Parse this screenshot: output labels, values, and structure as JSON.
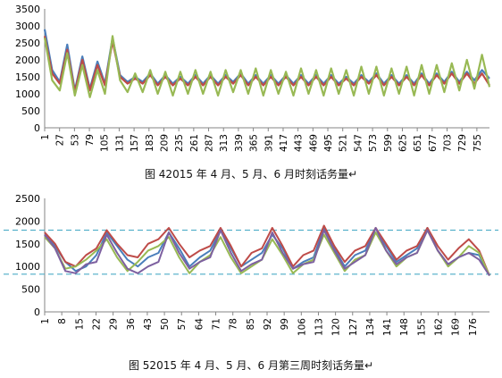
{
  "chart_data": [
    {
      "type": "line",
      "title": "",
      "xlabel": "",
      "ylabel": "",
      "ylim": [
        0,
        3500
      ],
      "y_ticks": [
        "0",
        "500",
        "1000",
        "1500",
        "2000",
        "2500",
        "3000",
        "3500"
      ],
      "x_ticks": [
        "1",
        "27",
        "53",
        "79",
        "105",
        "131",
        "157",
        "183",
        "209",
        "235",
        "261",
        "287",
        "313",
        "339",
        "365",
        "391",
        "417",
        "443",
        "469",
        "495",
        "521",
        "547",
        "573",
        "599",
        "625",
        "651",
        "677",
        "703",
        "729",
        "755"
      ],
      "x_range": [
        1,
        777
      ],
      "grid": false,
      "legend": "none",
      "series": [
        {
          "color": "#4a7ebb",
          "values": [
            2900,
            1700,
            1350,
            2450,
            1100,
            2100,
            1150,
            1950,
            1300,
            2650,
            1550,
            1350,
            1500,
            1350,
            1600,
            1300,
            1550,
            1300,
            1500,
            1300,
            1550,
            1300,
            1550,
            1300,
            1550,
            1350,
            1600,
            1300,
            1550,
            1300,
            1550,
            1300,
            1550,
            1300,
            1550,
            1300,
            1550,
            1300,
            1550,
            1300,
            1500,
            1300,
            1550,
            1350,
            1600,
            1300,
            1550,
            1300,
            1550,
            1300,
            1600,
            1300,
            1600,
            1350,
            1650,
            1350,
            1650,
            1400,
            1700,
            1450
          ]
        },
        {
          "color": "#be4b48",
          "values": [
            2700,
            1600,
            1300,
            2300,
            1050,
            2000,
            1100,
            1850,
            1250,
            2550,
            1500,
            1300,
            1450,
            1300,
            1550,
            1250,
            1500,
            1250,
            1450,
            1250,
            1500,
            1250,
            1500,
            1250,
            1500,
            1300,
            1550,
            1250,
            1500,
            1250,
            1500,
            1250,
            1500,
            1250,
            1500,
            1250,
            1500,
            1250,
            1500,
            1250,
            1450,
            1250,
            1500,
            1300,
            1550,
            1250,
            1500,
            1250,
            1500,
            1250,
            1550,
            1250,
            1550,
            1300,
            1600,
            1300,
            1600,
            1300,
            1600,
            1250
          ]
        },
        {
          "color": "#98b954",
          "values": [
            2650,
            1400,
            1100,
            2200,
            950,
            1850,
            900,
            1700,
            1000,
            2700,
            1400,
            1050,
            1600,
            1050,
            1700,
            1000,
            1650,
            950,
            1650,
            1000,
            1700,
            1000,
            1650,
            950,
            1700,
            1050,
            1700,
            1000,
            1750,
            950,
            1700,
            1000,
            1650,
            950,
            1750,
            1000,
            1700,
            950,
            1750,
            1000,
            1700,
            950,
            1800,
            1000,
            1800,
            950,
            1750,
            1000,
            1800,
            950,
            1850,
            1000,
            1850,
            1050,
            1900,
            1100,
            2000,
            1150,
            2150,
            1200
          ]
        }
      ]
    },
    {
      "type": "line",
      "title": "",
      "xlabel": "",
      "ylabel": "",
      "ylim": [
        0,
        2500
      ],
      "y_ticks": [
        "0",
        "500",
        "1000",
        "1500",
        "2000",
        "2500"
      ],
      "x_ticks": [
        "1",
        "8",
        "15",
        "22",
        "29",
        "36",
        "43",
        "50",
        "57",
        "64",
        "71",
        "78",
        "85",
        "92",
        "99",
        "106",
        "113",
        "120",
        "127",
        "134",
        "141",
        "148",
        "155",
        "162",
        "169",
        "176"
      ],
      "x_range": [
        1,
        183
      ],
      "grid": false,
      "legend": "none",
      "reference_lines": [
        1800,
        830
      ],
      "series": [
        {
          "color": "#4a7ebb",
          "values": [
            1700,
            1450,
            1100,
            900,
            1000,
            1250,
            1750,
            1450,
            1150,
            1000,
            1200,
            1300,
            1750,
            1400,
            1000,
            1200,
            1350,
            1800,
            1400,
            1000,
            1150,
            1300,
            1700,
            1400,
            950,
            1100,
            1200,
            1850,
            1400,
            1000,
            1250,
            1350,
            1850,
            1450,
            1100,
            1250,
            1400,
            1850,
            1350,
            1050,
            1200,
            1300,
            1250,
            800
          ]
        },
        {
          "color": "#be4b48",
          "values": [
            1750,
            1500,
            1100,
            1000,
            1250,
            1400,
            1800,
            1500,
            1250,
            1200,
            1500,
            1600,
            1850,
            1500,
            1200,
            1350,
            1450,
            1850,
            1450,
            1000,
            1300,
            1400,
            1850,
            1450,
            1000,
            1250,
            1350,
            1900,
            1450,
            1100,
            1350,
            1450,
            1850,
            1500,
            1150,
            1350,
            1450,
            1850,
            1450,
            1150,
            1400,
            1600,
            1350,
            800
          ]
        },
        {
          "color": "#98b954",
          "values": [
            1650,
            1400,
            950,
            1000,
            1150,
            1350,
            1600,
            1200,
            900,
            1100,
            1350,
            1450,
            1650,
            1200,
            850,
            1100,
            1250,
            1650,
            1200,
            850,
            1000,
            1150,
            1600,
            1250,
            850,
            1050,
            1150,
            1700,
            1300,
            900,
            1150,
            1250,
            1750,
            1350,
            1000,
            1200,
            1300,
            1800,
            1350,
            1000,
            1200,
            1450,
            1300,
            800
          ]
        },
        {
          "color": "#7d60a0",
          "values": [
            1700,
            1400,
            900,
            850,
            1050,
            1100,
            1700,
            1300,
            950,
            850,
            1000,
            1100,
            1750,
            1300,
            950,
            1100,
            1200,
            1800,
            1300,
            900,
            1050,
            1150,
            1750,
            1300,
            950,
            1050,
            1100,
            1800,
            1350,
            950,
            1100,
            1250,
            1850,
            1350,
            1050,
            1200,
            1300,
            1800,
            1350,
            1050,
            1200,
            1300,
            1150,
            800
          ]
        }
      ]
    }
  ],
  "captions": {
    "chart1": "图 42015 年 4 月、5 月、6 月时刻话务量↵",
    "chart2": "图 52015 年 4 月、5 月、6 月第三周时刻话务量↵"
  }
}
